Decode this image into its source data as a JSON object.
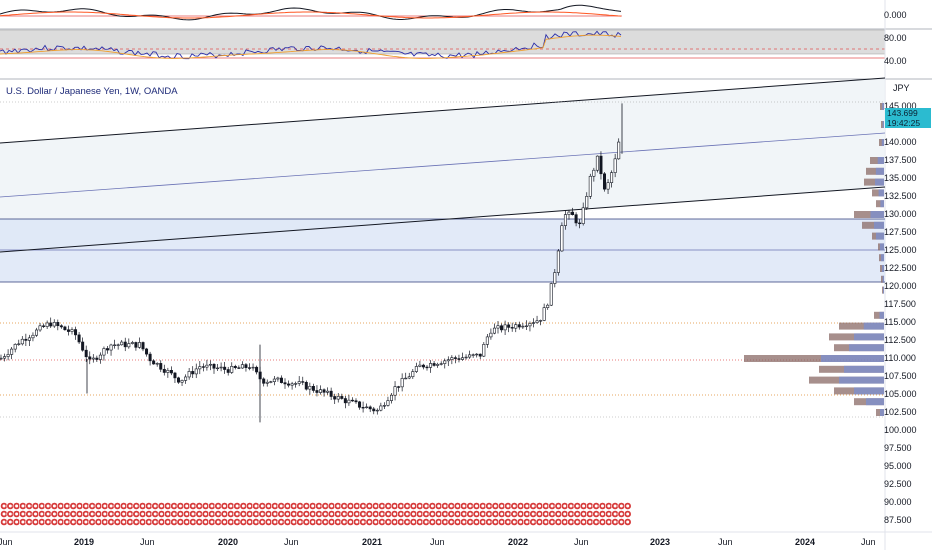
{
  "instrument": {
    "title": "U.S. Dollar / Japanese Yen, 1W, OANDA",
    "currency": "JPY"
  },
  "price_tag": {
    "price": "143.699",
    "countdown": "19:42:25"
  },
  "panes": {
    "top_indicator": {
      "label": "0.000"
    },
    "rsi": {
      "labels": [
        "80.00",
        "40.00"
      ]
    }
  },
  "price_axis": {
    "labels": [
      "145.000",
      "140.000",
      "137.500",
      "135.000",
      "132.500",
      "130.000",
      "127.500",
      "125.000",
      "122.500",
      "120.000",
      "117.500",
      "115.000",
      "112.500",
      "110.000",
      "107.500",
      "105.000",
      "102.500",
      "100.000",
      "97.500",
      "95.000",
      "92.500",
      "90.000",
      "87.500"
    ]
  },
  "time_axis": {
    "labels": [
      {
        "text": "Jun",
        "bold": false
      },
      {
        "text": "2019",
        "bold": true
      },
      {
        "text": "Jun",
        "bold": false
      },
      {
        "text": "2020",
        "bold": true
      },
      {
        "text": "Jun",
        "bold": false
      },
      {
        "text": "2021",
        "bold": true
      },
      {
        "text": "Jun",
        "bold": false
      },
      {
        "text": "2022",
        "bold": true
      },
      {
        "text": "Jun",
        "bold": false
      },
      {
        "text": "2023",
        "bold": true
      },
      {
        "text": "Jun",
        "bold": false
      },
      {
        "text": "2024",
        "bold": true
      },
      {
        "text": "Jun",
        "bold": false
      }
    ]
  },
  "colors": {
    "up_candle": "#131722",
    "trend_line": "#131722",
    "mid_line": "#6a72b5",
    "horizontal_level": "#2c3a7a",
    "zone_fill": "#dde6f7",
    "dotted_level": "#e08a2c",
    "red_dotted_level": "#e05050",
    "rsi_line": "#2b2ea8",
    "rsi_signal": "#f0a030",
    "osc_line": "#131722",
    "osc_signal": "#ff5722",
    "price_tag": "#2bbbd0",
    "profile_brown": "#8a6a66",
    "profile_blue": "#7b8fd0",
    "event_marker": "#d63a3a"
  },
  "icons": {
    "event_markers": "economic-event-flag-icon"
  }
}
